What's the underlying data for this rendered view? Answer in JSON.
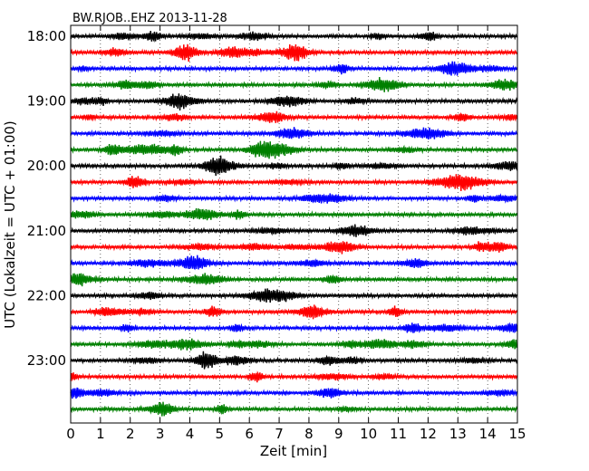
{
  "chart_data": {
    "type": "line",
    "title": "BW.RJOB..EHZ 2013-11-28",
    "xlabel": "Zeit  [min]",
    "ylabel": "UTC (Lokalzeit = UTC + 01:00)",
    "xlim": [
      0,
      15
    ],
    "x_ticks": [
      "0",
      "1",
      "2",
      "3",
      "4",
      "5",
      "6",
      "7",
      "8",
      "9",
      "10",
      "11",
      "12",
      "13",
      "14",
      "15"
    ],
    "y_ticks": [
      "18:00",
      "19:00",
      "20:00",
      "21:00",
      "22:00",
      "23:00"
    ],
    "traces_per_hour": 4,
    "trace_count": 24,
    "trace_colors": [
      "#000000",
      "#ff0000",
      "#0000ff",
      "#008000"
    ],
    "grid": "vertical dotted lines at each minute",
    "series": "seismogram traces, one per 15 minutes from 18:00 to 23:45 UTC"
  }
}
